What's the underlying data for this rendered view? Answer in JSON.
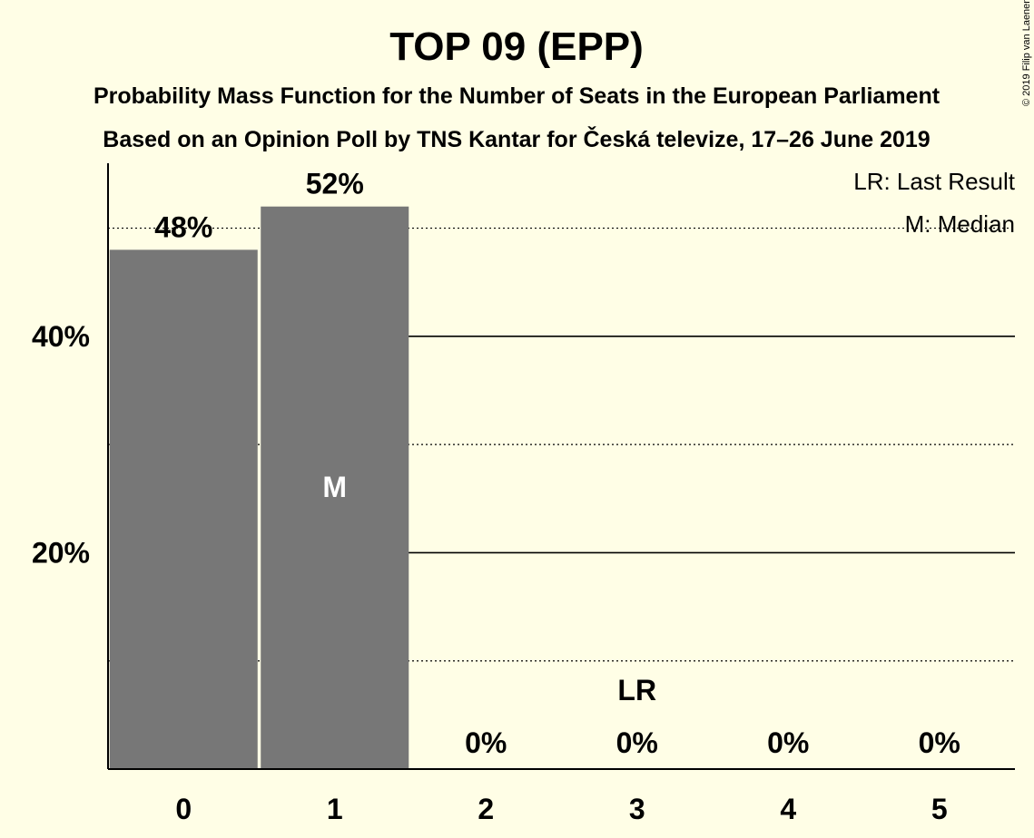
{
  "chart_data": {
    "type": "bar",
    "title": "TOP 09 (EPP)",
    "subtitle": [
      "Probability Mass Function for the Number of Seats in the European Parliament",
      "Based on an Opinion Poll by TNS Kantar for Česká televize, 17–26 June 2019"
    ],
    "categories": [
      "0",
      "1",
      "2",
      "3",
      "4",
      "5"
    ],
    "values": [
      48,
      52,
      0,
      0,
      0,
      0
    ],
    "value_labels": [
      "48%",
      "52%",
      "0%",
      "0%",
      "0%",
      "0%"
    ],
    "ylim": [
      0,
      56
    ],
    "y_ticks": [
      {
        "value": 20,
        "label": "20%"
      },
      {
        "value": 40,
        "label": "40%"
      }
    ],
    "gridlines_solid": [
      20,
      40
    ],
    "gridlines_dotted": [
      10,
      30,
      50
    ],
    "bar_color": "#777777",
    "background": "#FFFEE6",
    "markers": [
      {
        "category": "1",
        "label": "M",
        "meaning": "Median"
      },
      {
        "category": "3",
        "label": "LR",
        "meaning": "Last Result"
      }
    ],
    "legend": [
      "LR: Last Result",
      "M: Median"
    ],
    "legend_position": "top-right",
    "copyright": "© 2019 Filip van Laenen"
  }
}
